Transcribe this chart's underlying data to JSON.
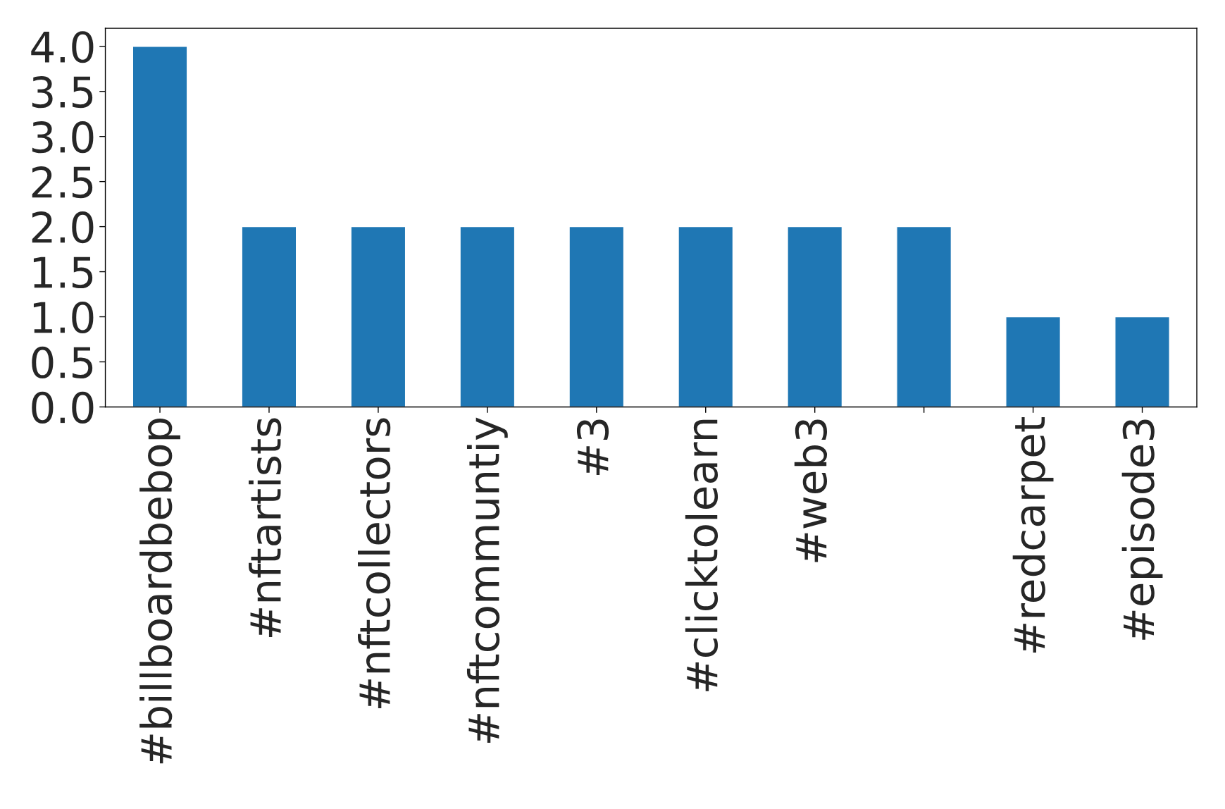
{
  "chart_data": {
    "type": "bar",
    "categories": [
      "#billboardbebop",
      "#nftartists",
      "#nftcollectors",
      "#nftcommuntiy",
      "#3",
      "#clicktolearn",
      "#web3",
      null,
      "#redcarpet",
      "#episode3"
    ],
    "values": [
      4,
      2,
      2,
      2,
      2,
      2,
      2,
      2,
      1,
      1
    ],
    "color": "#1f77b4",
    "ylim": [
      0,
      4.2
    ],
    "yticks": [
      {
        "value": 0,
        "label": "0.0"
      },
      {
        "value": 0.5,
        "label": "0.5"
      },
      {
        "value": 1,
        "label": "1.0"
      },
      {
        "value": 1.5,
        "label": "1.5"
      },
      {
        "value": 2,
        "label": "2.0"
      },
      {
        "value": 2.5,
        "label": "2.5"
      },
      {
        "value": 3,
        "label": "3.0"
      },
      {
        "value": 3.5,
        "label": "3.5"
      },
      {
        "value": 4,
        "label": "4.0"
      }
    ],
    "grid": false
  }
}
